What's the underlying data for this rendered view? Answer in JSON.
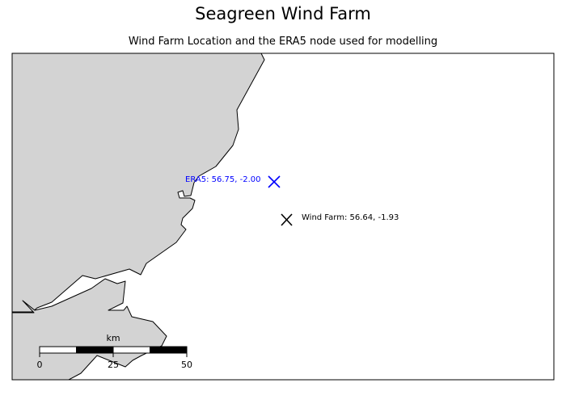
{
  "title": "Seagreen Wind Farm",
  "subtitle": "Wind Farm Location and the ERA5 node used for modelling",
  "colors": {
    "land": "#d3d3d3",
    "sea": "#ffffff",
    "coastline": "#000000",
    "era5_marker": "#0000ff",
    "wind_farm_marker": "#000000"
  },
  "markers": {
    "era5": {
      "label": "ERA5: 56.75, -2.00",
      "lat": 56.75,
      "lon": -2.0,
      "symbol": "x-icon"
    },
    "wind_farm": {
      "label": "Wind Farm: 56.64, -1.93",
      "lat": 56.64,
      "lon": -1.93,
      "symbol": "x-icon"
    }
  },
  "scale_bar": {
    "unit": "km",
    "ticks": [
      "0",
      "25",
      "50"
    ]
  }
}
